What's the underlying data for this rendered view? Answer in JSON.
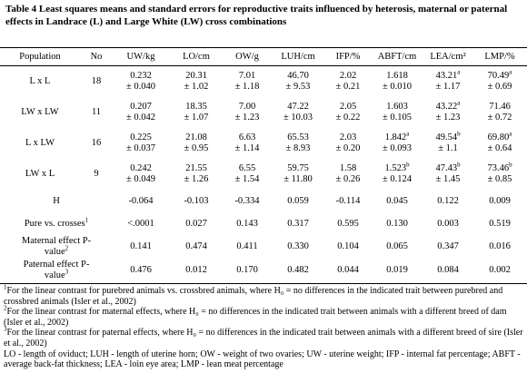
{
  "caption": {
    "label": "Table 4",
    "text": "Least squares means and standard errors for reproductive traits influenced by heterosis, maternal or paternal effects in Landrace (L) and Large White (LW) cross combinations"
  },
  "table": {
    "header": [
      "Population",
      "No",
      "UW/kg",
      "LO/cm",
      "OW/g",
      "LUH/cm",
      "IFP/%",
      "ABFT/cm",
      "LEA/cm²",
      "LMP/%"
    ],
    "groups": [
      {
        "population": "L x L",
        "no": "18",
        "cells": [
          {
            "mean": "0.232",
            "se": "± 0.040"
          },
          {
            "mean": "20.31",
            "se": "± 1.02"
          },
          {
            "mean": "7.01",
            "se": "± 1.18"
          },
          {
            "mean": "46.70",
            "se": "± 9.53"
          },
          {
            "mean": "2.02",
            "se": "± 0.21"
          },
          {
            "mean": "1.618",
            "se": "± 0.010"
          },
          {
            "mean": "43.21",
            "sup": "a",
            "se": "± 1.17"
          },
          {
            "mean": "70.49",
            "sup": "a",
            "se": "± 0.69"
          }
        ]
      },
      {
        "population": "LW x LW",
        "no": "11",
        "cells": [
          {
            "mean": "0.207",
            "se": "± 0.042"
          },
          {
            "mean": "18.35",
            "se": "± 1.07"
          },
          {
            "mean": "7.00",
            "se": "± 1.23"
          },
          {
            "mean": "47.22",
            "se": "± 10.03"
          },
          {
            "mean": "2.05",
            "se": "± 0.22"
          },
          {
            "mean": "1.603",
            "se": "± 0.105"
          },
          {
            "mean": "43.22",
            "sup": "a",
            "se": "± 1.23"
          },
          {
            "mean": "71.46",
            "se": "± 0.72"
          }
        ]
      },
      {
        "population": "L x LW",
        "no": "16",
        "cells": [
          {
            "mean": "0.225",
            "se": "± 0.037"
          },
          {
            "mean": "21.08",
            "se": "± 0.95"
          },
          {
            "mean": "6.63",
            "se": "± 1.14"
          },
          {
            "mean": "65.53",
            "se": "± 8.93"
          },
          {
            "mean": "2.03",
            "se": "± 0.20"
          },
          {
            "mean": "1.842",
            "sup": "a",
            "se": "± 0.093"
          },
          {
            "mean": "49.54",
            "sup": "b",
            "se": "± 1.1"
          },
          {
            "mean": "69.80",
            "sup": "a",
            "se": "± 0.64"
          }
        ]
      },
      {
        "population": "LW x L",
        "no": "9",
        "cells": [
          {
            "mean": "0.242",
            "se": "± 0.049"
          },
          {
            "mean": "21.55",
            "se": "± 1.26"
          },
          {
            "mean": "6.55",
            "se": "± 1.54"
          },
          {
            "mean": "59.75",
            "se": "± 11.80"
          },
          {
            "mean": "1.58",
            "se": "± 0.26"
          },
          {
            "mean": "1.523",
            "sup": "b",
            "se": "± 0.124"
          },
          {
            "mean": "47.43",
            "sup": "b",
            "se": "± 1.45"
          },
          {
            "mean": "73.46",
            "sup": "b",
            "se": "± 0.85"
          }
        ]
      }
    ],
    "stats": [
      {
        "label": "H",
        "values": [
          "-0.064",
          "-0.103",
          "-0.334",
          "0.059",
          "-0.114",
          "0.045",
          "0.122",
          "0.009"
        ]
      },
      {
        "label": "Pure vs. crosses",
        "note": "1",
        "values": [
          "<.0001",
          "0.027",
          "0.143",
          "0.317",
          "0.595",
          "0.130",
          "0.003",
          "0.519"
        ]
      },
      {
        "label": "Maternal effect P-value",
        "note": "2",
        "values": [
          "0.141",
          "0.474",
          "0.411",
          "0.330",
          "0.104",
          "0.065",
          "0.347",
          "0.016"
        ]
      },
      {
        "label": "Paternal effect P-value",
        "note": "3",
        "values": [
          "0.476",
          "0.012",
          "0.170",
          "0.482",
          "0.044",
          "0.019",
          "0.084",
          "0.002"
        ]
      }
    ]
  },
  "footnotes": [
    {
      "note": "1",
      "text": "For the linear contrast for purebred animals vs. crossbred animals, where H₀ = no differences in the indicated trait between purebred and crossbred animals (Isler et al., 2002)"
    },
    {
      "note": "2",
      "text": "For the linear contrast for maternal effects, where H₀ = no differences in the indicated trait between animals with a different breed of dam (Isler et al., 2002)"
    },
    {
      "note": "3",
      "text": "For the linear contrast for paternal effects, where H₀ = no differences in the indicated trait between animals with a different breed of sire (Isler et al., 2002)"
    },
    {
      "text": "LO - length of oviduct; LUH - length of uterine horn; OW - weight of two ovaries; UW - uterine weight; IFP - internal fat percentage; ABFT - average back-fat thickness; LEA - loin eye area; LMP - lean meat percentage"
    }
  ]
}
